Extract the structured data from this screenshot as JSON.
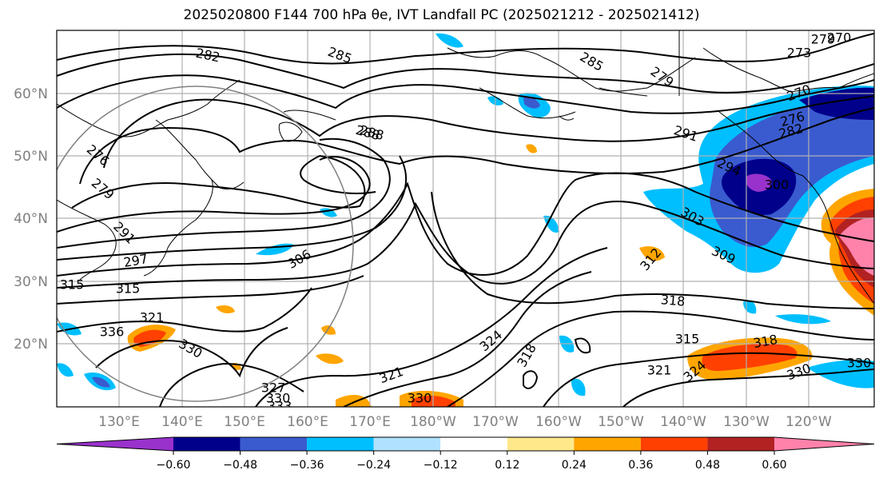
{
  "title": "2025020800 F144 700 hPa θe, IVT Landfall PC (2025021212 - 2025021412)",
  "lat_labels": [
    "60°N",
    "50°N",
    "40°N",
    "30°N",
    "20°N"
  ],
  "lon_labels": [
    "130°E",
    "140°E",
    "150°E",
    "160°E",
    "170°E",
    "180°W",
    "170°W",
    "160°W",
    "150°W",
    "140°W",
    "130°W",
    "120°W"
  ],
  "colorbar": {
    "tick_labels": [
      "−0.60",
      "−0.48",
      "−0.36",
      "−0.24",
      "−0.12",
      "0.12",
      "0.24",
      "0.36",
      "0.48",
      "0.60"
    ],
    "colors": [
      "#9932cc",
      "#00008b",
      "#3a5bcf",
      "#00bfff",
      "#b0e2ff",
      "#ffffff",
      "#ffe88a",
      "#ffa500",
      "#ff4000",
      "#b22222",
      "#ff82ab"
    ]
  },
  "contour_labels": [
    "282",
    "285",
    "285",
    "279",
    "279",
    "273",
    "270",
    "270",
    "276",
    "282",
    "288",
    "288",
    "291",
    "294",
    "276",
    "279",
    "291",
    "297",
    "300",
    "303",
    "309",
    "306",
    "315",
    "315",
    "318",
    "312",
    "321",
    "336",
    "330",
    "324",
    "318",
    "315",
    "318",
    "321",
    "324",
    "321",
    "327",
    "330",
    "333",
    "330",
    "330",
    "330"
  ]
}
